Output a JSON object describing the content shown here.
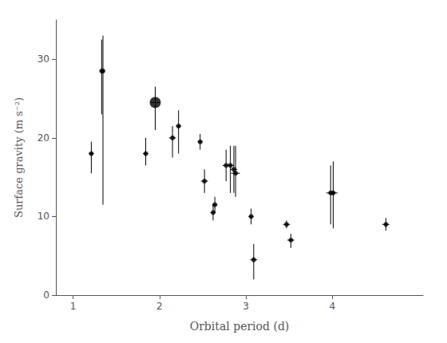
{
  "chart_data": {
    "type": "scatter",
    "title": "",
    "xlabel": "Orbital period (d)",
    "ylabel": "Surface gravity (m s⁻²)",
    "xlim": [
      0.8,
      5.05
    ],
    "ylim": [
      0,
      35
    ],
    "xticks": [
      1,
      2,
      3,
      4
    ],
    "yticks": [
      0,
      10,
      20,
      30
    ],
    "grid": false,
    "color": "black",
    "points": [
      {
        "x": 1.21,
        "y": 18.0,
        "xerr": 0.03,
        "yerr_lo": 2.5,
        "yerr_hi": 1.5,
        "big": false
      },
      {
        "x": 1.33,
        "y": 28.5,
        "xerr": 0.02,
        "yerr_lo": 5.5,
        "yerr_hi": 4.0,
        "big": false
      },
      {
        "x": 1.345,
        "y": 28.5,
        "xerr": 0.02,
        "yerr_lo": 17.0,
        "yerr_hi": 4.5,
        "big": false
      },
      {
        "x": 1.84,
        "y": 18.0,
        "xerr": 0.03,
        "yerr_lo": 1.5,
        "yerr_hi": 2.0,
        "big": false
      },
      {
        "x": 1.95,
        "y": 24.5,
        "xerr": 0.05,
        "yerr_lo": 3.5,
        "yerr_hi": 2.0,
        "big": true
      },
      {
        "x": 2.15,
        "y": 20.0,
        "xerr": 0.04,
        "yerr_lo": 2.5,
        "yerr_hi": 1.5,
        "big": false
      },
      {
        "x": 2.22,
        "y": 21.5,
        "xerr": 0.03,
        "yerr_lo": 3.5,
        "yerr_hi": 2.0,
        "big": false
      },
      {
        "x": 2.47,
        "y": 19.5,
        "xerr": 0.03,
        "yerr_lo": 1.0,
        "yerr_hi": 1.0,
        "big": false
      },
      {
        "x": 2.52,
        "y": 14.5,
        "xerr": 0.04,
        "yerr_lo": 1.5,
        "yerr_hi": 1.5,
        "big": false
      },
      {
        "x": 2.62,
        "y": 10.5,
        "xerr": 0.03,
        "yerr_lo": 1.0,
        "yerr_hi": 1.0,
        "big": false
      },
      {
        "x": 2.64,
        "y": 11.5,
        "xerr": 0.03,
        "yerr_lo": 1.0,
        "yerr_hi": 1.0,
        "big": false
      },
      {
        "x": 2.77,
        "y": 16.5,
        "xerr": 0.04,
        "yerr_lo": 2.0,
        "yerr_hi": 2.0,
        "big": false
      },
      {
        "x": 2.82,
        "y": 16.5,
        "xerr": 0.04,
        "yerr_lo": 3.5,
        "yerr_hi": 2.5,
        "big": false
      },
      {
        "x": 2.86,
        "y": 16.0,
        "xerr": 0.04,
        "yerr_lo": 3.0,
        "yerr_hi": 3.0,
        "big": false
      },
      {
        "x": 2.88,
        "y": 15.5,
        "xerr": 0.05,
        "yerr_lo": 3.0,
        "yerr_hi": 3.5,
        "big": false
      },
      {
        "x": 3.06,
        "y": 10.0,
        "xerr": 0.03,
        "yerr_lo": 1.0,
        "yerr_hi": 1.0,
        "big": false
      },
      {
        "x": 3.09,
        "y": 4.5,
        "xerr": 0.04,
        "yerr_lo": 2.5,
        "yerr_hi": 2.0,
        "big": false
      },
      {
        "x": 3.47,
        "y": 9.0,
        "xerr": 0.04,
        "yerr_lo": 0.5,
        "yerr_hi": 0.5,
        "big": false
      },
      {
        "x": 3.52,
        "y": 7.0,
        "xerr": 0.04,
        "yerr_lo": 1.0,
        "yerr_hi": 0.8,
        "big": false
      },
      {
        "x": 3.98,
        "y": 13.0,
        "xerr": 0.05,
        "yerr_lo": 4.0,
        "yerr_hi": 3.5,
        "big": false
      },
      {
        "x": 4.01,
        "y": 13.0,
        "xerr": 0.05,
        "yerr_lo": 4.5,
        "yerr_hi": 4.0,
        "big": false
      },
      {
        "x": 4.62,
        "y": 9.0,
        "xerr": 0.04,
        "yerr_lo": 0.8,
        "yerr_hi": 0.8,
        "big": false
      }
    ]
  }
}
